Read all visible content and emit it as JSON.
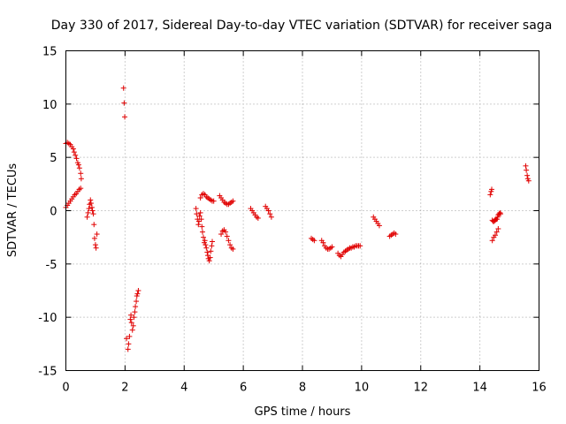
{
  "chart_data": {
    "type": "scatter",
    "title": "Day 330 of 2017, Sidereal Day-to-day VTEC variation (SDTVAR) for receiver saga",
    "xlabel": "GPS time / hours",
    "ylabel": "SDTVAR / TECUs",
    "xlim": [
      0,
      16
    ],
    "ylim": [
      -15,
      15
    ],
    "xticks": [
      "0",
      "2",
      "4",
      "6",
      "8",
      "10",
      "12",
      "14",
      "16"
    ],
    "yticks": [
      "-15",
      "-10",
      "-5",
      "0",
      "5",
      "10",
      "15"
    ],
    "grid": true,
    "marker": "plus",
    "marker_color": "#e00000",
    "series": [
      {
        "name": "SDTVAR",
        "x": [
          0.0,
          0.05,
          0.1,
          0.15,
          0.2,
          0.25,
          0.28,
          0.32,
          0.36,
          0.4,
          0.43,
          0.46,
          0.5,
          0.52,
          0.0,
          0.05,
          0.1,
          0.15,
          0.2,
          0.25,
          0.3,
          0.35,
          0.4,
          0.45,
          0.5,
          0.72,
          0.75,
          0.78,
          0.8,
          0.83,
          0.85,
          0.88,
          0.9,
          0.93,
          0.95,
          0.97,
          1.0,
          1.02,
          1.05,
          1.95,
          1.97,
          1.99,
          2.05,
          2.1,
          2.12,
          2.15,
          2.18,
          2.2,
          2.22,
          2.25,
          2.28,
          2.3,
          2.33,
          2.35,
          2.38,
          2.4,
          2.42,
          2.45,
          4.4,
          4.42,
          4.45,
          4.48,
          4.5,
          4.52,
          4.55,
          4.58,
          4.6,
          4.62,
          4.65,
          4.68,
          4.7,
          4.72,
          4.75,
          4.78,
          4.8,
          4.82,
          4.85,
          4.88,
          4.9,
          4.93,
          4.95,
          4.55,
          4.6,
          4.65,
          4.7,
          4.75,
          4.8,
          4.85,
          4.9,
          4.95,
          5.0,
          5.2,
          5.25,
          5.3,
          5.35,
          5.4,
          5.45,
          5.5,
          5.55,
          5.6,
          5.65,
          5.25,
          5.3,
          5.35,
          5.4,
          5.45,
          5.5,
          5.55,
          5.6,
          5.65,
          6.25,
          6.3,
          6.35,
          6.4,
          6.45,
          6.5,
          6.75,
          6.8,
          6.85,
          6.9,
          6.95,
          8.3,
          8.35,
          8.4,
          8.65,
          8.7,
          8.75,
          8.8,
          8.85,
          8.9,
          8.95,
          9.0,
          9.2,
          9.25,
          9.3,
          9.35,
          9.4,
          9.45,
          9.5,
          9.55,
          9.6,
          9.65,
          9.7,
          9.75,
          9.8,
          9.85,
          9.9,
          9.95,
          10.4,
          10.45,
          10.5,
          10.55,
          10.6,
          10.95,
          11.0,
          11.05,
          11.1,
          11.15,
          14.35,
          14.38,
          14.4,
          14.42,
          14.45,
          14.48,
          14.5,
          14.52,
          14.55,
          14.58,
          14.6,
          14.62,
          14.65,
          14.68,
          14.7,
          14.42,
          14.47,
          14.52,
          14.57,
          14.62,
          15.55,
          15.57,
          15.6,
          15.62,
          15.65
        ],
        "y": [
          6.3,
          6.4,
          6.3,
          6.2,
          6.0,
          5.8,
          5.5,
          5.2,
          4.9,
          4.5,
          4.3,
          4.0,
          3.5,
          3.0,
          0.3,
          0.5,
          0.7,
          0.9,
          1.1,
          1.3,
          1.5,
          1.6,
          1.8,
          2.0,
          2.1,
          -0.6,
          -0.2,
          0.2,
          0.6,
          1.0,
          0.7,
          0.3,
          0.0,
          -0.3,
          -1.3,
          -2.6,
          -3.2,
          -3.5,
          -2.2,
          11.5,
          10.1,
          8.8,
          -12.0,
          -13.0,
          -12.5,
          -11.8,
          -10.2,
          -9.8,
          -10.5,
          -11.2,
          -10.8,
          -10.0,
          -9.5,
          -9.0,
          -8.5,
          -8.0,
          -7.8,
          -7.5,
          0.2,
          -0.3,
          -0.8,
          -1.3,
          -1.0,
          -0.5,
          -0.2,
          -0.8,
          -1.5,
          -2.0,
          -2.5,
          -3.0,
          -2.8,
          -3.2,
          -3.5,
          -3.9,
          -4.2,
          -4.5,
          -4.7,
          -4.4,
          -3.8,
          -3.3,
          -2.9,
          1.2,
          1.5,
          1.6,
          1.5,
          1.3,
          1.2,
          1.1,
          1.0,
          0.9,
          0.9,
          1.4,
          1.2,
          1.0,
          0.8,
          0.7,
          0.6,
          0.6,
          0.7,
          0.8,
          0.9,
          -2.2,
          -1.9,
          -1.8,
          -2.0,
          -2.4,
          -2.8,
          -3.2,
          -3.5,
          -3.6,
          0.2,
          0.0,
          -0.2,
          -0.4,
          -0.6,
          -0.7,
          0.4,
          0.2,
          0.0,
          -0.3,
          -0.6,
          -2.6,
          -2.7,
          -2.8,
          -2.8,
          -3.0,
          -3.3,
          -3.5,
          -3.6,
          -3.6,
          -3.5,
          -3.4,
          -4.0,
          -4.2,
          -4.3,
          -4.1,
          -3.9,
          -3.8,
          -3.7,
          -3.6,
          -3.5,
          -3.5,
          -3.4,
          -3.4,
          -3.3,
          -3.3,
          -3.3,
          -3.3,
          -0.6,
          -0.8,
          -1.0,
          -1.2,
          -1.4,
          -2.4,
          -2.3,
          -2.2,
          -2.1,
          -2.2,
          1.5,
          1.8,
          2.0,
          -0.9,
          -1.0,
          -1.0,
          -0.9,
          -0.9,
          -0.8,
          -0.8,
          -0.6,
          -0.4,
          -0.3,
          -0.2,
          -0.3,
          -2.8,
          -2.5,
          -2.3,
          -2.0,
          -1.7,
          4.2,
          3.8,
          3.3,
          3.0,
          2.8
        ]
      }
    ]
  }
}
